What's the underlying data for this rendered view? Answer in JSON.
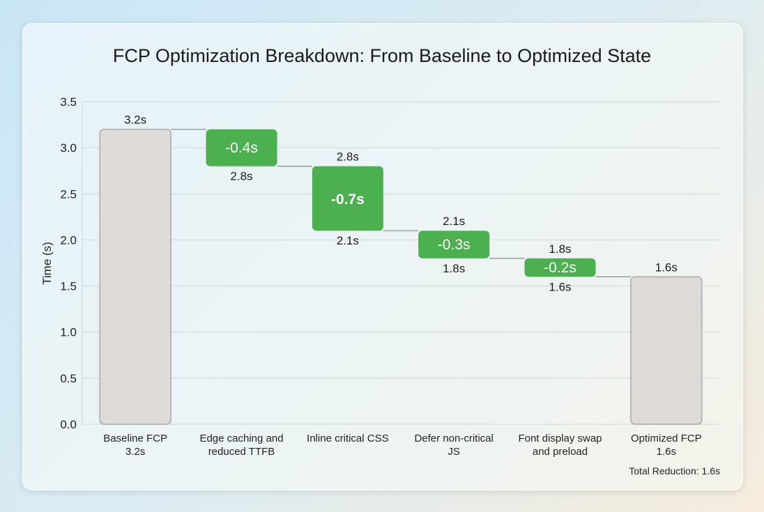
{
  "chart_data": {
    "type": "waterfall",
    "title": "FCP Optimization Breakdown: From Baseline to Optimized State",
    "ylabel": "Time (s)",
    "xlabel": "",
    "ylim": [
      0,
      3.5
    ],
    "yticks": [
      "0.0",
      "0.5",
      "1.0",
      "1.5",
      "2.0",
      "2.5",
      "3.0",
      "3.5"
    ],
    "grid": true,
    "bars": [
      {
        "category": [
          "Baseline FCP",
          "3.2s"
        ],
        "kind": "total",
        "start": 0,
        "end": 3.2,
        "label_top": "3.2s",
        "label_bottom": "",
        "inside": ""
      },
      {
        "category": [
          "Edge caching and",
          "reduced TTFB"
        ],
        "kind": "decrease",
        "start": 3.2,
        "end": 2.8,
        "label_top": "",
        "label_bottom": "2.8s",
        "inside": "-0.4s"
      },
      {
        "category": [
          "Inline critical CSS"
        ],
        "kind": "decrease",
        "start": 2.8,
        "end": 2.1,
        "label_top": "2.8s",
        "label_bottom": "2.1s",
        "inside": "-0.7s",
        "emphasis": true
      },
      {
        "category": [
          "Defer non-critical",
          "JS"
        ],
        "kind": "decrease",
        "start": 2.1,
        "end": 1.8,
        "label_top": "2.1s",
        "label_bottom": "1.8s",
        "inside": "-0.3s"
      },
      {
        "category": [
          "Font display swap",
          "and preload"
        ],
        "kind": "decrease",
        "start": 1.8,
        "end": 1.6,
        "label_top": "1.8s",
        "label_bottom": "1.6s",
        "inside": "-0.2s"
      },
      {
        "category": [
          "Optimized FCP",
          "1.6s"
        ],
        "kind": "total",
        "start": 0,
        "end": 1.6,
        "label_top": "1.6s",
        "label_bottom": "",
        "inside": ""
      }
    ],
    "annotation": "Total Reduction: 1.6s",
    "colors": {
      "total": "#dedbd7",
      "total_stroke": "#a9a9a9",
      "decrease": "#4caf50",
      "connector": "#8a8a8a",
      "grid": "#cfd6da"
    }
  }
}
